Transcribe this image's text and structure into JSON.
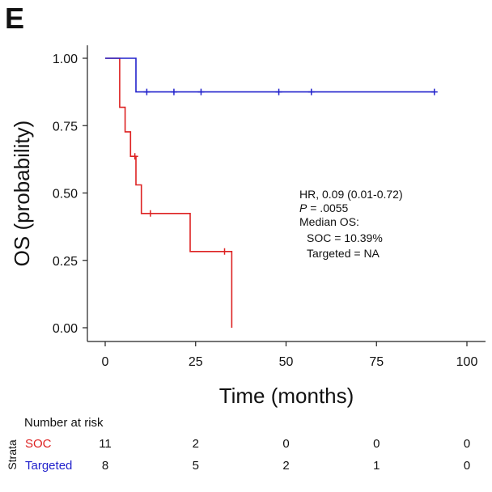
{
  "panel_label": "E",
  "colors": {
    "soc": "#dd2222",
    "targeted": "#2222cc",
    "axis": "#222222"
  },
  "chart_data": {
    "type": "line",
    "subtype": "kaplan-meier",
    "xlabel": "Time (months)",
    "ylabel": "OS (probability)",
    "xlim": [
      0,
      100
    ],
    "ylim": [
      0,
      1
    ],
    "x_ticks": [
      0,
      25,
      50,
      75,
      100
    ],
    "y_ticks": [
      0.0,
      0.25,
      0.5,
      0.75,
      1.0
    ],
    "y_tick_labels": [
      "0.00",
      "0.25",
      "0.50",
      "0.75",
      "1.00"
    ],
    "grid": false,
    "series": [
      {
        "name": "SOC",
        "color": "#dd2222",
        "steps": [
          [
            0,
            1.0
          ],
          [
            4,
            1.0
          ],
          [
            4,
            0.818
          ],
          [
            5.5,
            0.818
          ],
          [
            5.5,
            0.727
          ],
          [
            7,
            0.727
          ],
          [
            7,
            0.636
          ],
          [
            8.5,
            0.636
          ],
          [
            8.5,
            0.53
          ],
          [
            10,
            0.53
          ],
          [
            10,
            0.424
          ],
          [
            23.5,
            0.424
          ],
          [
            23.5,
            0.283
          ],
          [
            35,
            0.283
          ],
          [
            35,
            0.0
          ]
        ],
        "censored": [
          [
            8.2,
            0.636
          ],
          [
            12.5,
            0.424
          ],
          [
            33,
            0.283
          ]
        ]
      },
      {
        "name": "Targeted",
        "color": "#2222cc",
        "steps": [
          [
            0,
            1.0
          ],
          [
            8.5,
            1.0
          ],
          [
            8.5,
            0.875
          ],
          [
            91,
            0.875
          ]
        ],
        "censored": [
          [
            11.5,
            0.875
          ],
          [
            19,
            0.875
          ],
          [
            26.5,
            0.875
          ],
          [
            48,
            0.875
          ],
          [
            57,
            0.875
          ],
          [
            91,
            0.875
          ]
        ]
      }
    ],
    "annotation": {
      "hr": "HR, 0.09 (0.01-0.72)",
      "p_italic": "P",
      "p_rest": " = .0055",
      "median_title": "Median OS:",
      "median_soc": "SOC = 10.39%",
      "median_targeted": "Targeted = NA"
    }
  },
  "risk_table": {
    "title": "Number at risk",
    "strata_label": "Strata",
    "rows": [
      {
        "name": "SOC",
        "values": [
          "11",
          "2",
          "0",
          "0",
          "0"
        ]
      },
      {
        "name": "Targeted",
        "values": [
          "8",
          "5",
          "2",
          "1",
          "0"
        ]
      }
    ]
  }
}
